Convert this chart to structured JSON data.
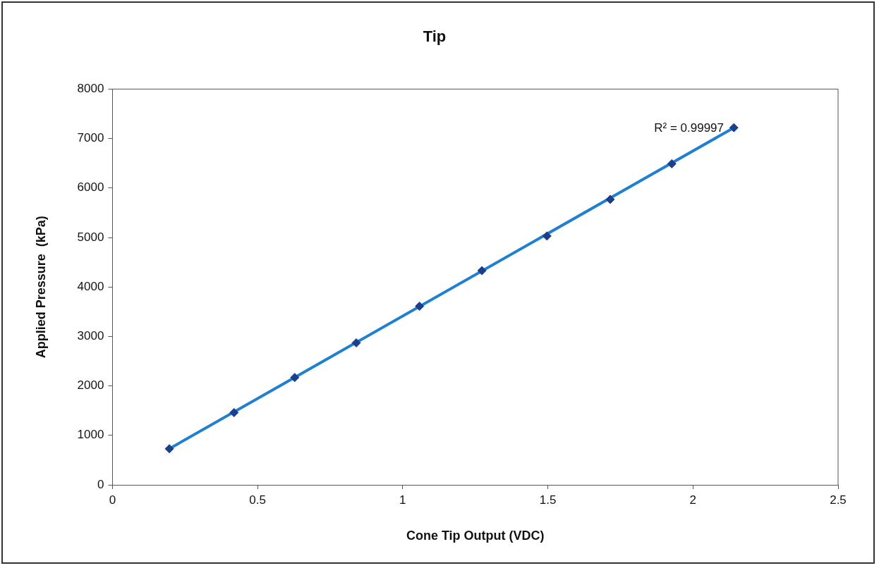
{
  "chart_data": {
    "type": "scatter",
    "title": "Tip",
    "xlabel": "Cone Tip Output (VDC)",
    "ylabel": "Applied Pressure  (kPa)",
    "xlim": [
      0,
      2.5
    ],
    "xticks": [
      0,
      0.5,
      1,
      1.5,
      2,
      2.5
    ],
    "ylim": [
      0,
      8000
    ],
    "yticks": [
      0,
      1000,
      2000,
      3000,
      4000,
      5000,
      6000,
      7000,
      8000
    ],
    "grid": false,
    "legend": false,
    "marker": "diamond",
    "annotations": [
      "R² = 0.99997"
    ],
    "series": [
      {
        "color": "#1c3f8c",
        "x": [
          0.196,
          0.419,
          0.628,
          0.84,
          1.058,
          1.273,
          1.497,
          1.715,
          1.927,
          2.141
        ],
        "values": [
          730,
          1460,
          2170,
          2870,
          3610,
          4330,
          5030,
          5770,
          6490,
          7220
        ]
      },
      {
        "type": "line",
        "marker": "none",
        "color": "#1f7fd0",
        "x": [
          0.196,
          2.141
        ],
        "values": [
          730,
          7220
        ]
      }
    ]
  }
}
